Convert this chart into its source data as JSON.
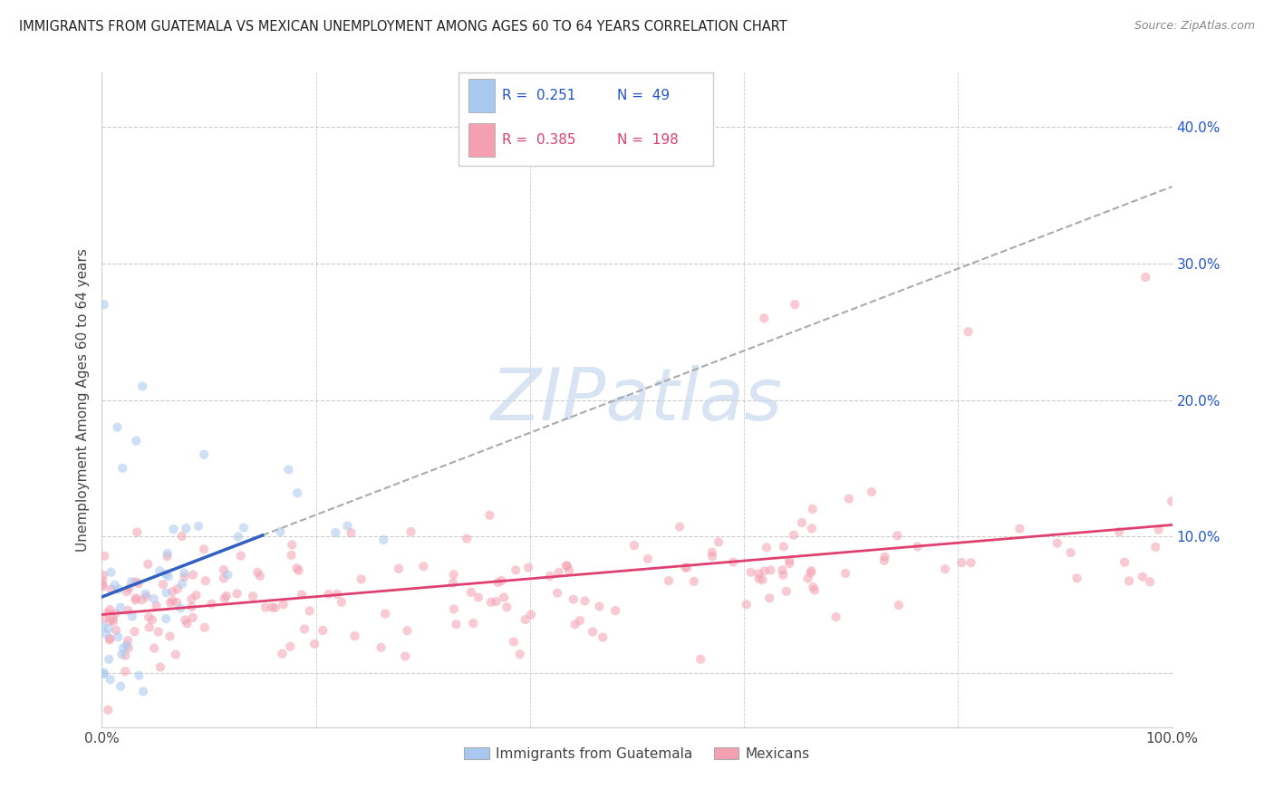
{
  "title": "IMMIGRANTS FROM GUATEMALA VS MEXICAN UNEMPLOYMENT AMONG AGES 60 TO 64 YEARS CORRELATION CHART",
  "source": "Source: ZipAtlas.com",
  "ylabel": "Unemployment Among Ages 60 to 64 years",
  "ytick_vals": [
    0,
    10,
    20,
    30,
    40
  ],
  "xlim": [
    0,
    100
  ],
  "ylim": [
    -4,
    44
  ],
  "legend1_label": "Immigrants from Guatemala",
  "legend2_label": "Mexicans",
  "r1": "0.251",
  "n1": "49",
  "r2": "0.385",
  "n2": "198",
  "color_blue": "#A8C8F0",
  "color_pink": "#F4A0B0",
  "color_blue_line": "#3060C0",
  "color_pink_line": "#E04070",
  "color_blue_text": "#2255CC",
  "color_pink_text": "#E04070",
  "watermark_color": "#C8D8F0",
  "background": "#FFFFFF",
  "grid_color": "#CCCCCC",
  "scatter_alpha": 0.55,
  "scatter_size": 55
}
